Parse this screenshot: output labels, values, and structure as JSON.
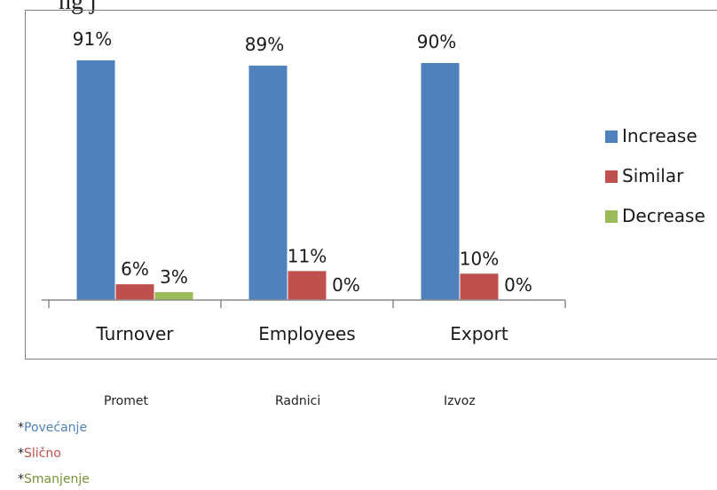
{
  "page": {
    "title": "ng       j"
  },
  "chart_data": {
    "type": "bar",
    "categories": [
      "Turnover",
      "Employees",
      "Export"
    ],
    "series": [
      {
        "name": "Increase",
        "values": [
          91,
          89,
          90
        ],
        "labels": [
          "91%",
          "89%",
          "90%"
        ],
        "color": "#4f81bd"
      },
      {
        "name": "Similar",
        "values": [
          6,
          11,
          10
        ],
        "labels": [
          "6%",
          "11%",
          "10%"
        ],
        "color": "#c0504d"
      },
      {
        "name": "Decrease",
        "values": [
          3,
          0,
          0
        ],
        "labels": [
          "3%",
          "0%",
          "0%"
        ],
        "color": "#9bbb59"
      }
    ],
    "ylim": [
      0,
      100
    ],
    "grid": false,
    "legend_position": "right"
  },
  "translations": {
    "categories": [
      "Promet",
      "Radnici",
      "Izvoz"
    ],
    "legend": [
      {
        "prefix": "*",
        "text": "Povećanje",
        "color": "#4f81bd"
      },
      {
        "prefix": "*",
        "text": "Slično",
        "color": "#c0504d"
      },
      {
        "prefix": "*",
        "text": "Smanjenje",
        "color": "#76923c"
      }
    ]
  }
}
